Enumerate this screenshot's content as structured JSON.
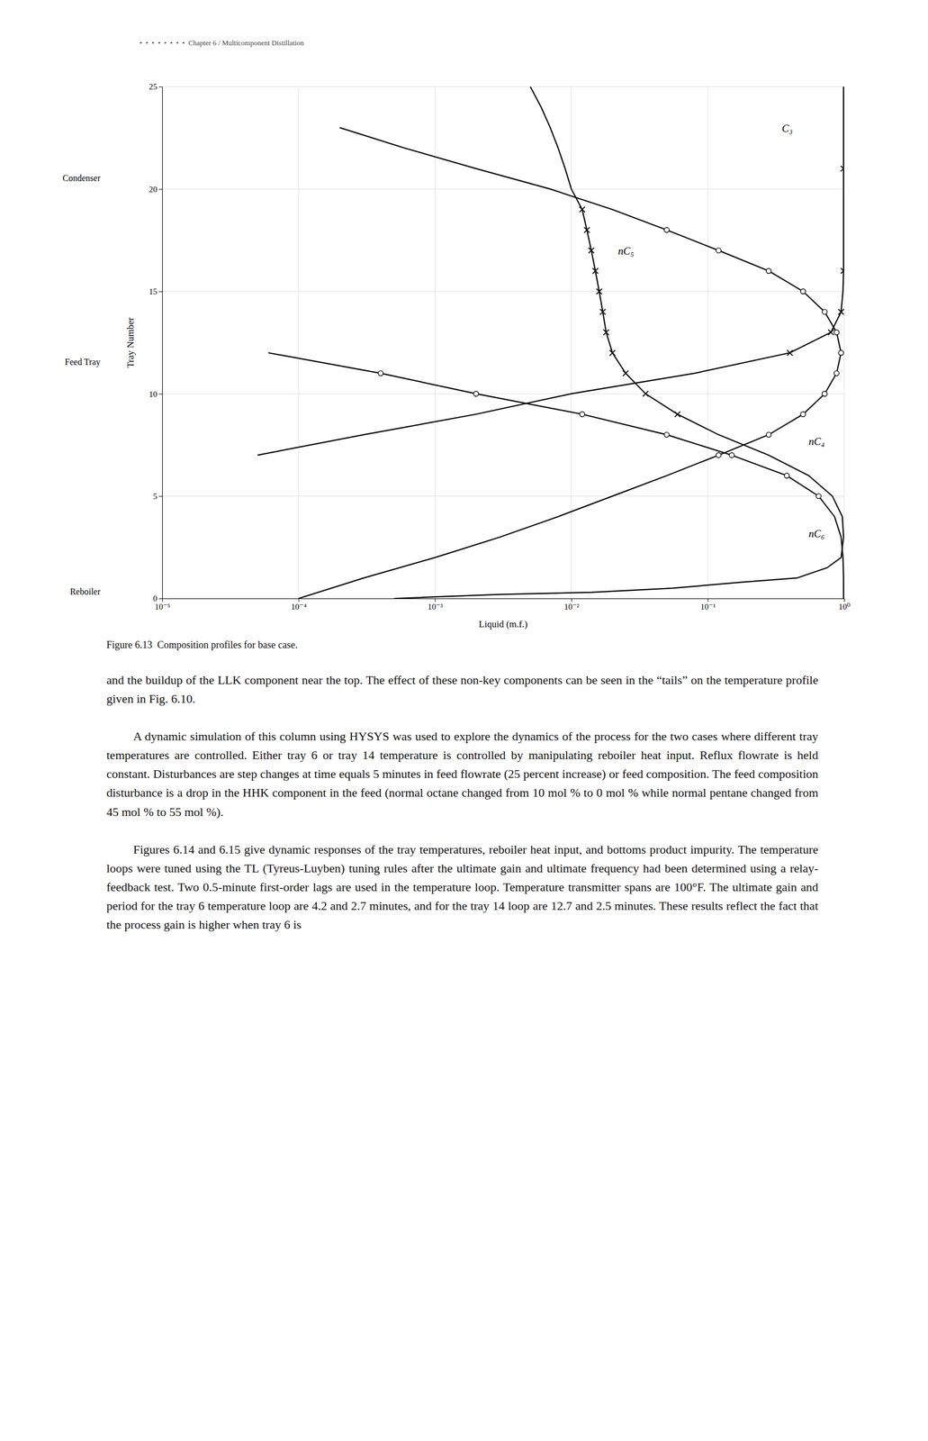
{
  "chart_data": {
    "type": "line",
    "log": "x",
    "grid": true,
    "xlabel": "Liquid (m.f.)",
    "ylabel": "Tray Number",
    "xlim": [
      1e-05,
      1
    ],
    "xticks": [
      {
        "value": 1e-05,
        "label": "10⁻⁵"
      },
      {
        "value": 0.0001,
        "label": "10⁻⁴"
      },
      {
        "value": 0.001,
        "label": "10⁻³"
      },
      {
        "value": 0.01,
        "label": "10⁻²"
      },
      {
        "value": 0.1,
        "label": "10⁻¹"
      },
      {
        "value": 1,
        "label": "10⁰"
      }
    ],
    "ylim": [
      0,
      25
    ],
    "yticks": [
      0,
      5,
      10,
      15,
      20,
      25
    ],
    "caption": "Figure 6.13  Composition profiles for base case.",
    "series": [
      {
        "type": "line",
        "color": "#000000",
        "line_style": "solid",
        "x": [
          0.99,
          0.99,
          0.99,
          0.99,
          0.99,
          0.99,
          0.99,
          0.99,
          0.99,
          0.99,
          0.98,
          0.95,
          0.8,
          0.4,
          0.08,
          0.01,
          0.002,
          0.0003,
          5e-05
        ],
        "values": [
          25,
          24,
          23,
          22,
          21,
          20,
          19,
          18,
          17,
          16,
          15,
          14,
          13,
          12,
          11,
          10,
          9,
          8,
          7
        ]
      },
      {
        "type": "scatter",
        "color": "#000000",
        "marker": "x",
        "x": [
          0.4,
          0.8,
          0.95,
          0.99,
          0.99
        ],
        "values": [
          12,
          13,
          14,
          16,
          21
        ]
      },
      {
        "type": "line",
        "color": "#000000",
        "line_style": "solid",
        "x": [
          0.005,
          0.006,
          0.007,
          0.008,
          0.009,
          0.01,
          0.012,
          0.013,
          0.014,
          0.015,
          0.016,
          0.017,
          0.018,
          0.02,
          0.025,
          0.035,
          0.06,
          0.12,
          0.28,
          0.55,
          0.82,
          0.97,
          0.99,
          0.95,
          0.75,
          0.45,
          0.18,
          0.055,
          0.014,
          0.003,
          0.0005
        ],
        "values": [
          25,
          24,
          23,
          22,
          21,
          20,
          19,
          18,
          17,
          16,
          15,
          14,
          13,
          12,
          11,
          10,
          9,
          8,
          7,
          6,
          5,
          4,
          3,
          2,
          1.5,
          1,
          0.8,
          0.5,
          0.3,
          0.2,
          0
        ]
      },
      {
        "type": "scatter",
        "color": "#000000",
        "marker": "x",
        "x": [
          0.012,
          0.013,
          0.014,
          0.015,
          0.016,
          0.017,
          0.018,
          0.02,
          0.025,
          0.035,
          0.06
        ],
        "values": [
          19,
          18,
          17,
          16,
          15,
          14,
          13,
          12,
          11,
          10,
          9
        ]
      },
      {
        "type": "line",
        "color": "#000000",
        "line_style": "solid",
        "x": [
          0.0001,
          0.0003,
          0.001,
          0.003,
          0.008,
          0.02,
          0.05,
          0.12,
          0.28,
          0.5,
          0.72,
          0.88,
          0.95,
          0.88,
          0.72,
          0.5,
          0.28,
          0.12,
          0.05,
          0.02,
          0.007,
          0.002,
          0.0006,
          0.0002
        ],
        "values": [
          0,
          1,
          2,
          3,
          4,
          5,
          6,
          7,
          8,
          9,
          10,
          11,
          12,
          13,
          14,
          15,
          16,
          17,
          18,
          19,
          20,
          21,
          22,
          23
        ]
      },
      {
        "type": "scatter",
        "color": "#000000",
        "marker": "circle",
        "x": [
          0.12,
          0.28,
          0.5,
          0.72,
          0.88,
          0.95,
          0.88,
          0.72,
          0.5,
          0.28,
          0.12,
          0.05
        ],
        "values": [
          7,
          8,
          9,
          10,
          11,
          12,
          13,
          14,
          15,
          16,
          17,
          18
        ]
      },
      {
        "type": "line",
        "color": "#000000",
        "line_style": "solid",
        "x": [
          0.99,
          0.99,
          0.98,
          0.95,
          0.85,
          0.65,
          0.38,
          0.15,
          0.05,
          0.012,
          0.002,
          0.0004,
          6e-05
        ],
        "values": [
          0,
          1,
          2,
          3,
          4,
          5,
          6,
          7,
          8,
          9,
          10,
          11,
          12
        ]
      },
      {
        "type": "scatter",
        "color": "#000000",
        "marker": "circle",
        "x": [
          0.65,
          0.38,
          0.15,
          0.05,
          0.012,
          0.002,
          0.0004
        ],
        "values": [
          5,
          6,
          7,
          8,
          9,
          10,
          11
        ]
      }
    ],
    "annotations": [
      {
        "text": "C₃",
        "x": 0.35,
        "y": 22.8
      },
      {
        "text": "nC₅",
        "x": 0.022,
        "y": 16.8
      },
      {
        "text": "nC₄",
        "x": 0.55,
        "y": 7.5
      },
      {
        "text": "nC₆",
        "x": 0.55,
        "y": 3.0
      },
      {
        "text": "Condenser",
        "y": 20.5
      },
      {
        "text": "Feed Tray",
        "y": 11.5
      },
      {
        "text": "Reboiler",
        "y": 0.3
      }
    ]
  },
  "page": {
    "header": "•  •  •  •  •  •  •  •  Chapter 6 / Multicomponent Distillation",
    "paragraphs": [
      "and the buildup of the LLK component near the top. The effect of these non-key components can be seen in the “tails” on the temperature profile given in Fig. 6.10.",
      "A dynamic simulation of this column using HYSYS was used to explore the dynamics of the process for the two cases where different tray temperatures are controlled. Either tray 6 or tray 14 temperature is controlled by manipulating reboiler heat input. Reflux flowrate is held constant. Disturbances are step changes at time equals 5 minutes in feed flowrate (25 percent increase) or feed composition. The feed composition disturbance is a drop in the HHK component in the feed (normal octane changed from 10 mol % to 0 mol % while normal pentane changed from 45 mol % to 55 mol %).",
      "Figures 6.14 and 6.15 give dynamic responses of the tray temperatures, reboiler heat input, and bottoms product impurity. The temperature loops were tuned using the TL (Tyreus-Luyben) tuning rules after the ultimate gain and ultimate frequency had been determined using a relay-feedback test. Two 0.5-minute first-order lags are used in the temperature loop. Temperature transmitter spans are 100°F. The ultimate gain and period for the tray 6 temperature loop are 4.2 and 2.7 minutes, and for the tray 14 loop are 12.7 and 2.5 minutes. These results reflect the fact that the process gain is higher when tray 6 is"
    ]
  }
}
